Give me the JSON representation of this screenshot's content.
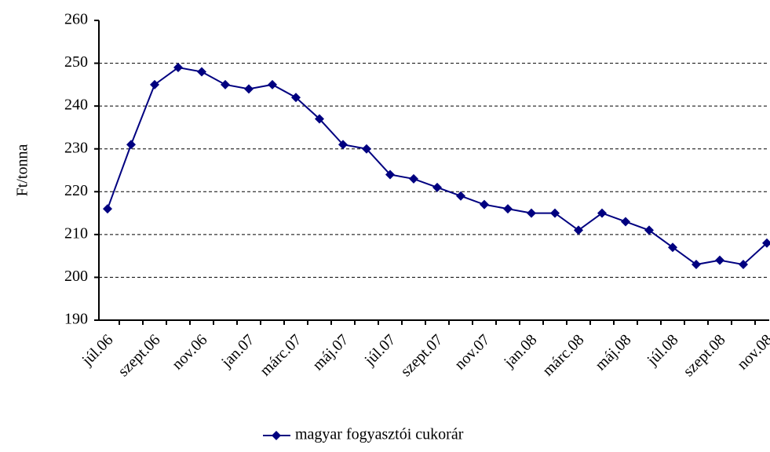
{
  "chart_data": {
    "type": "line",
    "y_label": "Ft/tonna",
    "categories": [
      "júl.06",
      null,
      "szept.06",
      null,
      "nov.06",
      null,
      "jan.07",
      null,
      "márc.07",
      null,
      "máj.07",
      null,
      "júl.07",
      null,
      "szept.07",
      null,
      "nov.07",
      null,
      "jan.08",
      null,
      "márc.08",
      null,
      "máj.08",
      null,
      "júl.08",
      null,
      "szept.08",
      null,
      "nov.08"
    ],
    "series": [
      {
        "name": "magyar fogyasztói cukorár",
        "color": "#000080",
        "values": [
          216,
          231,
          245,
          249,
          248,
          245,
          244,
          245,
          242,
          237,
          231,
          230,
          224,
          223,
          221,
          219,
          217,
          216,
          215,
          215,
          211,
          215,
          213,
          211,
          207,
          203,
          204,
          203,
          208
        ]
      }
    ],
    "ylim": [
      190,
      260
    ],
    "yticks": [
      190,
      200,
      210,
      220,
      230,
      240,
      250,
      260
    ],
    "grid": true,
    "legend": "bottom"
  }
}
